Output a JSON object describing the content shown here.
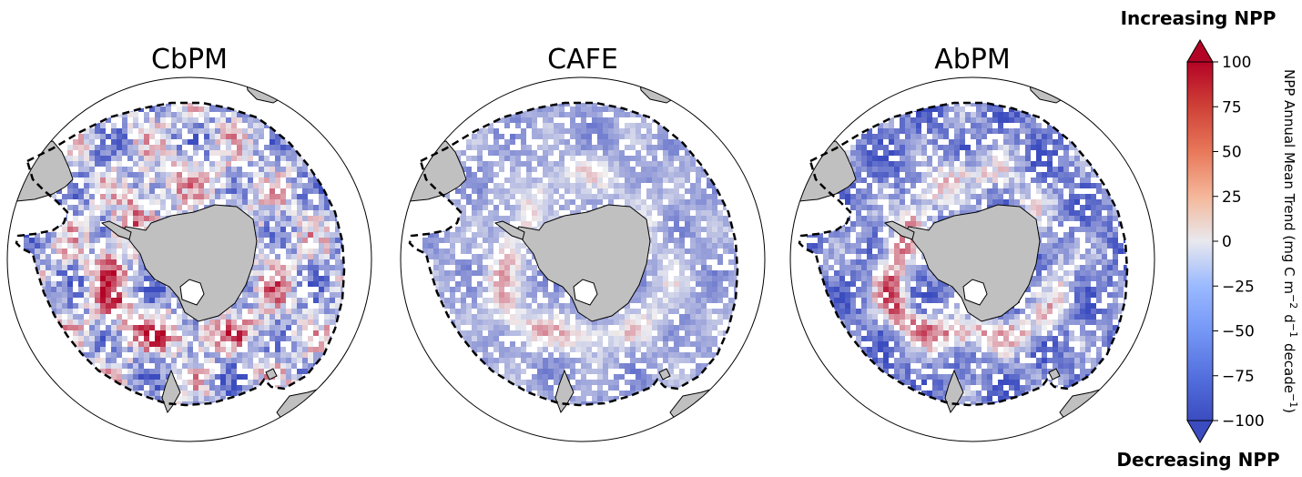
{
  "chart_data": {
    "type": "heatmap",
    "projection": "south-polar-stereographic",
    "panels": [
      {
        "title": "CbPM",
        "pattern": {
          "base": -30,
          "ring": 70,
          "noise": 55,
          "seed": 11
        }
      },
      {
        "title": "CAFE",
        "pattern": {
          "base": -40,
          "ring": 40,
          "noise": 20,
          "seed": 23
        }
      },
      {
        "title": "AbPM",
        "pattern": {
          "base": -60,
          "ring": 85,
          "noise": 35,
          "seed": 37
        }
      }
    ],
    "colorbar": {
      "label_main": "NPP Annual Mean Trend (mg C m",
      "label_exp1": "−2",
      "label_mid": "d",
      "label_exp2": "−1",
      "label_end": "decade",
      "label_exp3": "−1",
      "label_close": ")",
      "range": [
        -100,
        100
      ],
      "extend": "both",
      "ticks": [
        {
          "value": 100,
          "label": "100"
        },
        {
          "value": 75,
          "label": "75"
        },
        {
          "value": 50,
          "label": "50"
        },
        {
          "value": 25,
          "label": "25"
        },
        {
          "value": 0,
          "label": "0"
        },
        {
          "value": -25,
          "label": "−25"
        },
        {
          "value": -50,
          "label": "−50"
        },
        {
          "value": -75,
          "label": "−75"
        },
        {
          "value": -100,
          "label": "−100"
        }
      ],
      "colormap": "coolwarm",
      "colors": {
        "low": "#3b4cc0",
        "mid": "#f2f2f2",
        "high": "#b40426",
        "ext_low": "#3b4cc0",
        "ext_high": "#b40426"
      }
    },
    "annotations": {
      "top": "Increasing NPP",
      "bottom": "Decreasing NPP"
    },
    "land_color": "#c0c0c0"
  }
}
